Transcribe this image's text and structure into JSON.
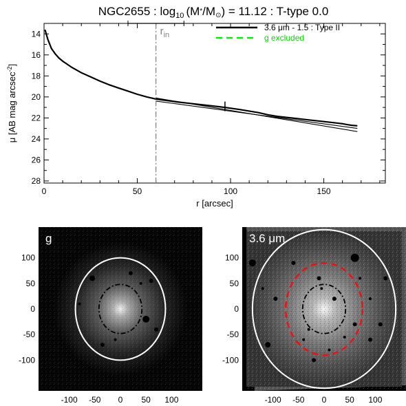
{
  "chart_data": [
    {
      "type": "line",
      "title": {
        "galaxy": "NGC2655",
        "mass_label": "log",
        "mass_sub": "10",
        "mass_ratio": "(M",
        "mass_star": "*",
        "mass_over": "/M",
        "mass_sun": "⊙",
        "mass_close": ")",
        "mass_value": "= 11.12",
        "ttype": "T-type 0.0",
        "separator": ":"
      },
      "xlabel": "r [arcsec]",
      "ylabel": "μ [AB mag arcsec",
      "ylabel_sup": "-2",
      "ylabel_close": "]",
      "xlim": [
        0,
        183
      ],
      "ylim": [
        28.2,
        13.0
      ],
      "y_inverted": true,
      "xticks": [
        0,
        50,
        100,
        150
      ],
      "yticks": [
        14,
        16,
        18,
        20,
        22,
        24,
        26,
        28
      ],
      "legend": {
        "position": "top-right",
        "entries": [
          {
            "label": "3.6 μm - 1.5 : Type II",
            "color": "#000000",
            "style": "solid"
          },
          {
            "label": "g excluded",
            "color": "#00ee00",
            "style": "dashed"
          }
        ]
      },
      "rin": {
        "label": "r",
        "label_sub": "in",
        "x": 60,
        "bar_x": [
          45,
          75
        ],
        "color": "#808080"
      },
      "break_marker": {
        "x": 97,
        "y": 20.9
      },
      "series": [
        {
          "label": "3.6 μm profile",
          "color": "#000000",
          "x": [
            0.5,
            2,
            4,
            6,
            8,
            10,
            15,
            20,
            25,
            30,
            35,
            40,
            45,
            50,
            55,
            60,
            70,
            80,
            90,
            97,
            105,
            110,
            115,
            120,
            125,
            130,
            135,
            140,
            145,
            150,
            155,
            160,
            163,
            165,
            168
          ],
          "y": [
            13.6,
            14.5,
            15.4,
            15.9,
            16.3,
            16.6,
            17.2,
            17.7,
            18.1,
            18.5,
            18.85,
            19.15,
            19.45,
            19.75,
            20.0,
            20.2,
            20.45,
            20.65,
            20.85,
            21.0,
            21.2,
            21.35,
            21.5,
            21.7,
            21.85,
            21.95,
            22.05,
            22.15,
            22.25,
            22.35,
            22.45,
            22.55,
            22.65,
            22.7,
            22.75
          ]
        },
        {
          "label": "inner fit",
          "color": "#000000",
          "x": [
            60,
            168
          ],
          "y": [
            20.1,
            23.3
          ]
        },
        {
          "label": "outer fit",
          "color": "#000000",
          "x": [
            60,
            168
          ],
          "y": [
            20.4,
            23.0
          ]
        }
      ]
    },
    {
      "type": "image",
      "label": "g",
      "xticks": [
        -100,
        -50,
        0,
        50,
        100
      ],
      "yticks": [
        100,
        50,
        0,
        -50,
        -100
      ],
      "lim": [
        -160,
        160
      ],
      "outer_ellipse": {
        "rx": 88,
        "ry": 100,
        "color": "#ffffff"
      },
      "inner_ellipse": {
        "rx": 42,
        "ry": 48,
        "color": "#000000",
        "style": "dashdot"
      }
    },
    {
      "type": "image",
      "label": "3.6 μm",
      "xticks": [
        -100,
        -50,
        0,
        50,
        100
      ],
      "yticks": [
        100,
        50,
        0,
        -50,
        -100
      ],
      "lim": [
        -160,
        160
      ],
      "outer_ellipse": {
        "rx": 140,
        "ry": 155,
        "color": "#ffffff"
      },
      "mid_ellipse": {
        "rx": 75,
        "ry": 90,
        "color": "#ee1111",
        "style": "dashed"
      },
      "inner_ellipse": {
        "rx": 42,
        "ry": 48,
        "color": "#000000",
        "style": "dashdot"
      }
    }
  ]
}
